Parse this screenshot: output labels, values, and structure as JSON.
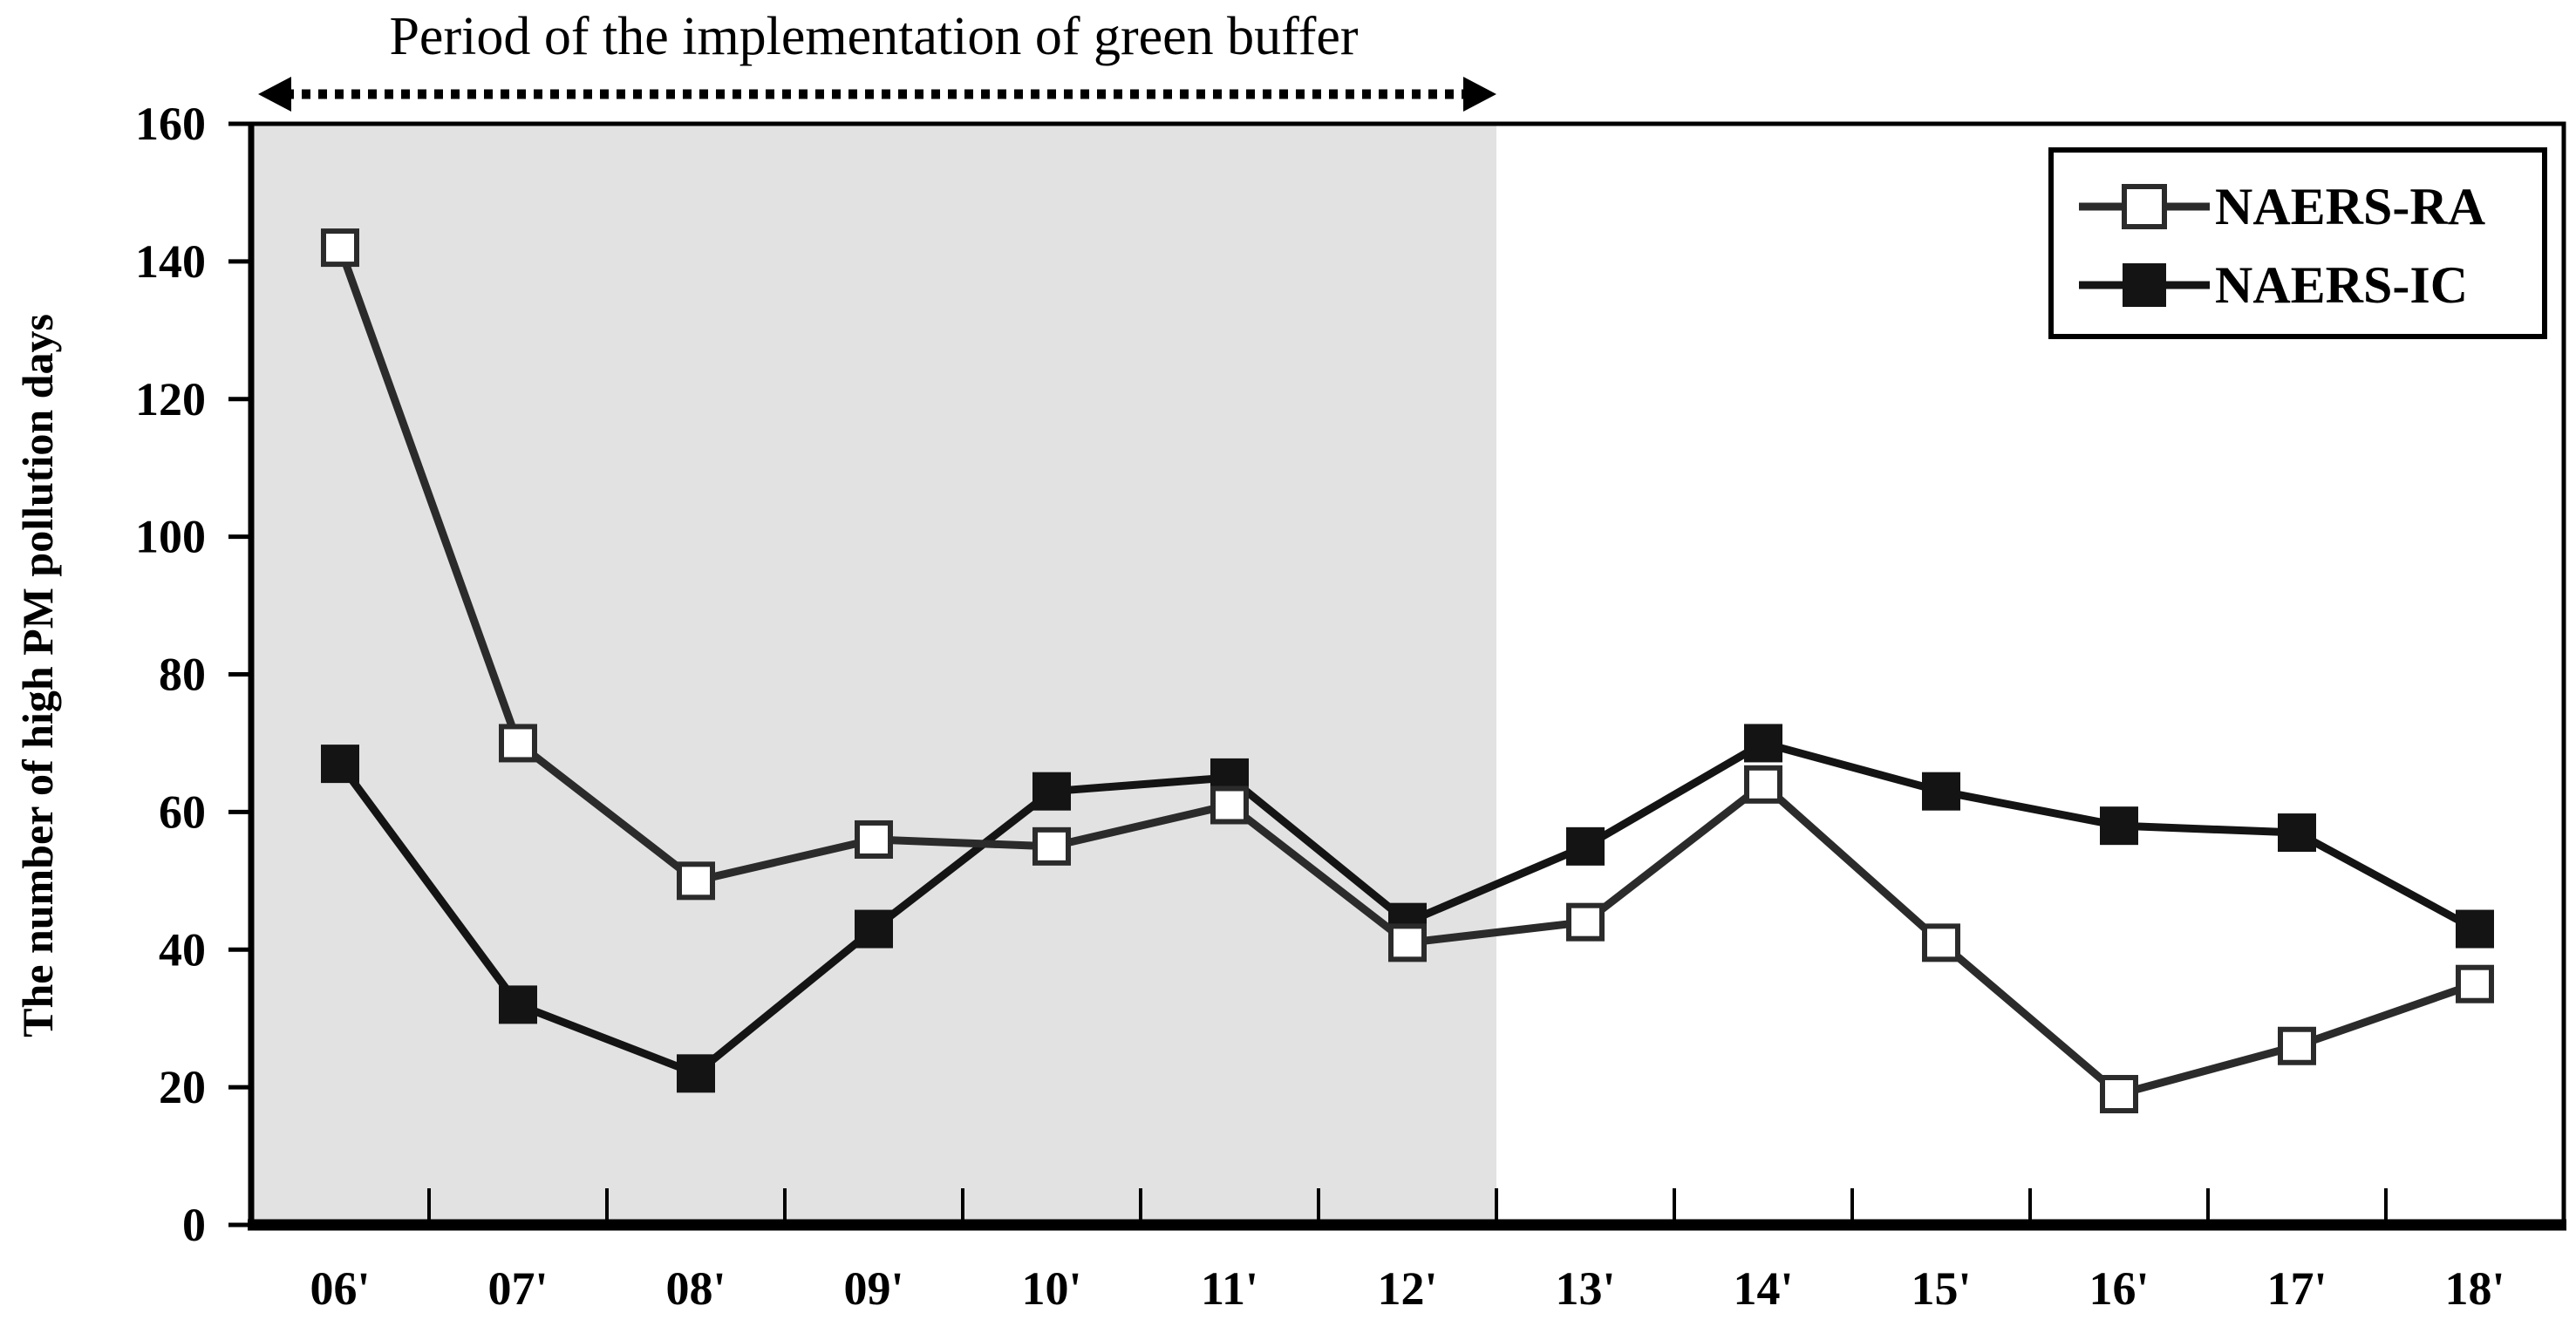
{
  "chart_data": {
    "type": "line",
    "title": "Period of the implementation of green buffer",
    "categories": [
      "06'",
      "07'",
      "08'",
      "09'",
      "10'",
      "11'",
      "12'",
      "13'",
      "14'",
      "15'",
      "16'",
      "17'",
      "18'"
    ],
    "series": [
      {
        "name": "NAERS-RA",
        "marker": "open-square",
        "color": "#2b2b2b",
        "values": [
          142,
          70,
          50,
          56,
          55,
          61,
          41,
          44,
          64,
          41,
          19,
          26,
          35
        ]
      },
      {
        "name": "NAERS-IC",
        "marker": "filled-square",
        "color": "#141414",
        "values": [
          67,
          32,
          22,
          43,
          63,
          65,
          44,
          55,
          70,
          63,
          58,
          57,
          43
        ]
      }
    ],
    "xlabel": "",
    "ylabel": "The number of high PM pollution days",
    "ylim": [
      0,
      160
    ],
    "ytick_step": 20,
    "grid": false,
    "legend_position": "top-right",
    "shaded_region": {
      "label": "Period of the implementation of green buffer",
      "color": "#e2e2e2",
      "from_category": "06'",
      "to_category": "12'",
      "end_boundary_after_category_index": 6
    },
    "annotation_arrow": {
      "style": "dotted-double-headed",
      "spans": "shaded region"
    }
  },
  "colors": {
    "background": "#ffffff",
    "axis": "#000000",
    "series_line": "#2b2b2b",
    "shaded_region": "#e2e2e2",
    "legend_border": "#000000"
  }
}
